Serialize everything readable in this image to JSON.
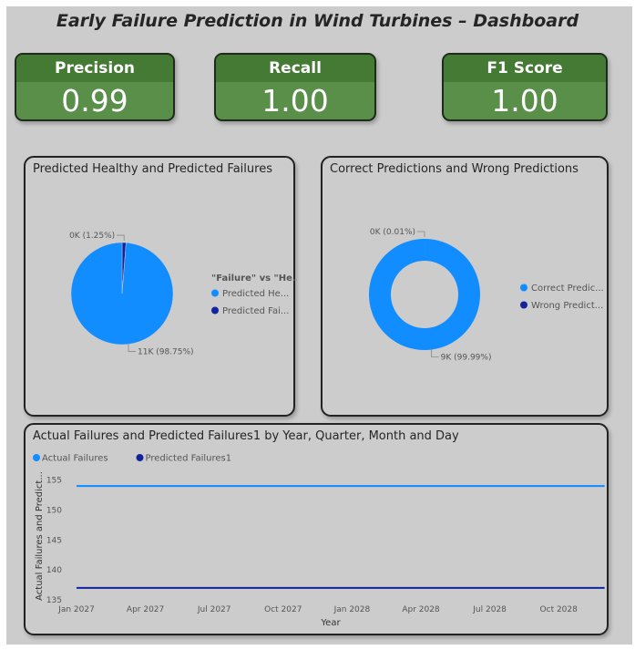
{
  "dashboard": {
    "title": "Early Failure Prediction in Wind Turbines – Dashboard"
  },
  "kpis": [
    {
      "label": "Precision",
      "value": "0.99"
    },
    {
      "label": "Recall",
      "value": "1.00"
    },
    {
      "label": "F1 Score",
      "value": "1.00"
    }
  ],
  "colors": {
    "light_blue": "#118dff",
    "dark_blue": "#12239e",
    "kpi_green": "#5a8f4a",
    "kpi_header": "#457a35"
  },
  "chart_data": [
    {
      "type": "pie",
      "title": "Predicted Healthy and Predicted Failures",
      "legend_title": "\"Failure\" vs \"He...",
      "legend_position": "right",
      "slices": [
        {
          "label": "Predicted He...",
          "percent": 98.75,
          "data_label": "11K (98.75%)",
          "color": "#118dff"
        },
        {
          "label": "Predicted Fai...",
          "percent": 1.25,
          "data_label": "0K (1.25%)",
          "color": "#12239e"
        }
      ]
    },
    {
      "type": "pie",
      "variant": "donut",
      "title": "Correct Predictions and Wrong Predictions",
      "legend_position": "right",
      "slices": [
        {
          "label": "Correct Predic...",
          "percent": 99.99,
          "data_label": "9K (99.99%)",
          "color": "#118dff"
        },
        {
          "label": "Wrong Predict...",
          "percent": 0.01,
          "data_label": "0K (0.01%)",
          "color": "#12239e"
        }
      ]
    },
    {
      "type": "line",
      "title": "Actual Failures and Predicted Failures1 by Year, Quarter, Month and Day",
      "xlabel": "Year",
      "ylabel": "Actual Failures and Predict...",
      "legend_position": "top-left",
      "x_ticks": [
        "Jan 2027",
        "Apr 2027",
        "Jul 2027",
        "Oct 2027",
        "Jan 2028",
        "Apr 2028",
        "Jul 2028",
        "Oct 2028"
      ],
      "x_range": [
        "2027-01",
        "2028-12"
      ],
      "y_ticks": [
        135,
        140,
        145,
        150,
        155
      ],
      "ylim": [
        135,
        156
      ],
      "grid": false,
      "series": [
        {
          "name": "Actual Failures",
          "color": "#118dff",
          "x": [
            "2027-01",
            "2028-12"
          ],
          "values": [
            154,
            154
          ]
        },
        {
          "name": "Predicted Failures1",
          "color": "#12239e",
          "x": [
            "2027-01",
            "2028-12"
          ],
          "values": [
            137,
            137
          ]
        }
      ]
    }
  ]
}
